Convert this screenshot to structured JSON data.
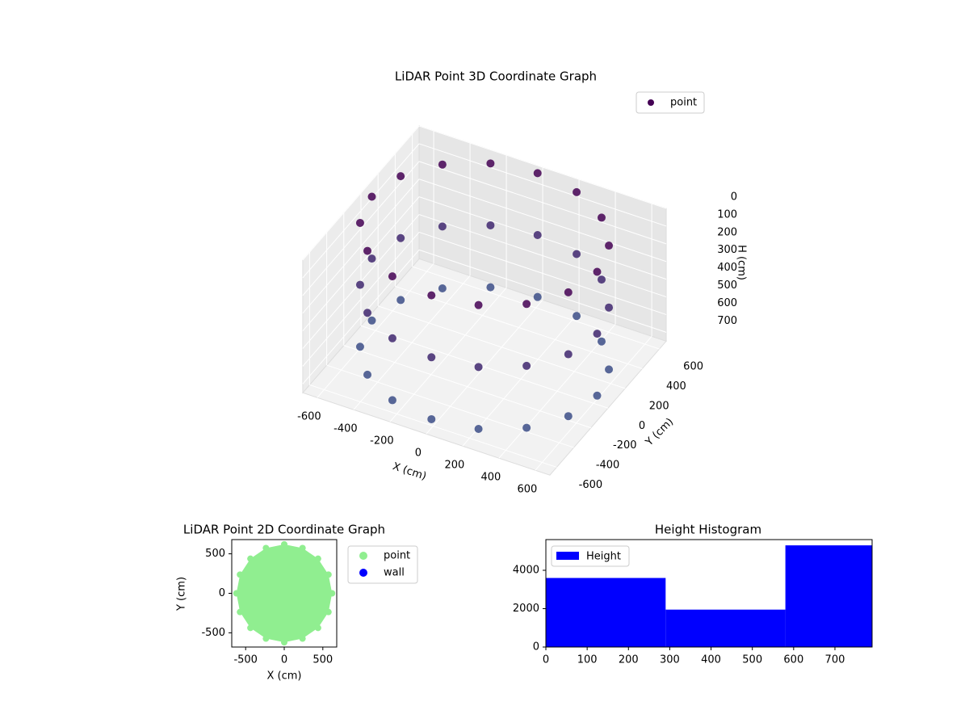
{
  "chart_data": [
    {
      "type": "scatter3d",
      "title": "LiDAR Point 3D Coordinate Graph",
      "xlabel": "X (cm)",
      "ylabel": "Y (cm)",
      "zlabel": "H (cm)",
      "xlim": [
        -680,
        680
      ],
      "ylim": [
        -680,
        680
      ],
      "zlim": [
        0,
        750
      ],
      "zinvert": true,
      "xticks": [
        -600,
        -400,
        -200,
        0,
        200,
        400,
        600
      ],
      "yticks": [
        -600,
        -400,
        -200,
        0,
        200,
        400,
        600
      ],
      "zticks": [
        0,
        100,
        200,
        300,
        400,
        500,
        600,
        700
      ],
      "grid": true,
      "legend": "upper right",
      "series": [
        {
          "name": "point",
          "color": "#440154",
          "x": [
            620,
            573,
            438,
            237,
            0,
            -237,
            -438,
            -573,
            -620,
            -573,
            -438,
            -237,
            0,
            237,
            438,
            573,
            620,
            573,
            438,
            237,
            0,
            -237,
            -438,
            -573,
            -620,
            -573,
            -438,
            -237,
            0,
            237,
            438,
            573,
            620,
            573,
            438,
            237,
            0,
            -237,
            -438,
            -573,
            -620,
            -573,
            -438,
            -237,
            0,
            237,
            438,
            573
          ],
          "y": [
            0,
            237,
            438,
            573,
            620,
            573,
            438,
            237,
            0,
            -237,
            -438,
            -573,
            -620,
            -573,
            -438,
            -237,
            0,
            237,
            438,
            573,
            620,
            573,
            438,
            237,
            0,
            -237,
            -438,
            -573,
            -620,
            -573,
            -438,
            -237,
            0,
            237,
            438,
            573,
            620,
            573,
            438,
            237,
            0,
            -237,
            -438,
            -573,
            -620,
            -573,
            -438,
            -237
          ],
          "z": [
            0,
            0,
            0,
            0,
            0,
            0,
            0,
            0,
            0,
            0,
            0,
            0,
            0,
            0,
            0,
            0,
            350,
            350,
            350,
            350,
            350,
            350,
            350,
            350,
            350,
            350,
            350,
            350,
            350,
            350,
            350,
            350,
            700,
            700,
            700,
            700,
            700,
            700,
            700,
            700,
            700,
            700,
            700,
            700,
            700,
            700,
            700,
            700
          ]
        }
      ]
    },
    {
      "type": "scatter",
      "title": "LiDAR Point 2D Coordinate Graph",
      "xlabel": "X (cm)",
      "ylabel": "Y (cm)",
      "xlim": [
        -680,
        680
      ],
      "ylim": [
        -680,
        680
      ],
      "xticks": [
        -500,
        0,
        500
      ],
      "yticks": [
        -500,
        0,
        500
      ],
      "legend": "outside right",
      "series": [
        {
          "name": "point",
          "color": "#90ee90",
          "x": [
            620,
            573,
            438,
            237,
            0,
            -237,
            -438,
            -573,
            -620,
            -573,
            -438,
            -237,
            0,
            237,
            438,
            573
          ],
          "y": [
            0,
            237,
            438,
            573,
            620,
            573,
            438,
            237,
            0,
            -237,
            -438,
            -573,
            -620,
            -573,
            -438,
            -237
          ]
        },
        {
          "name": "wall",
          "color": "#0000ff",
          "x": [],
          "y": []
        }
      ]
    },
    {
      "type": "histogram",
      "title": "Height Histogram",
      "bins": [
        0,
        290,
        580,
        790
      ],
      "values": [
        3600,
        1950,
        5300
      ],
      "xlim": [
        0,
        790
      ],
      "ylim": [
        0,
        5600
      ],
      "xticks": [
        0,
        100,
        200,
        300,
        400,
        500,
        600,
        700
      ],
      "yticks": [
        0,
        2000,
        4000
      ],
      "legend": "upper left",
      "series_name": "Height",
      "color": "#0000ff"
    }
  ]
}
